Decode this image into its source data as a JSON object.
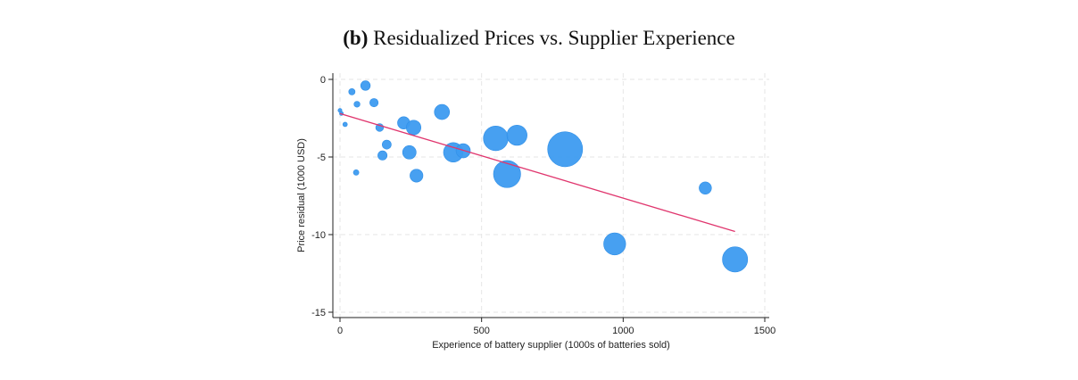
{
  "title": {
    "prefix": "(b)",
    "text": "Residualized Prices vs. Supplier Experience"
  },
  "chart_data": {
    "type": "scatter",
    "title": "(b) Residualized Prices vs. Supplier Experience",
    "xlabel": "Experience of battery supplier (1000s of batteries sold)",
    "ylabel": "Price residual (1000 USD)",
    "xlim": [
      0,
      1500
    ],
    "ylim": [
      -15,
      0
    ],
    "xticks": [
      0,
      500,
      1000,
      1500
    ],
    "yticks": [
      0,
      -5,
      -10,
      -15
    ],
    "grid": true,
    "point_color": "#3d9bf0",
    "fit_color": "#e0366e",
    "points": [
      {
        "x": 0,
        "y": -2.0,
        "weight": 0.3
      },
      {
        "x": 5,
        "y": -2.2,
        "weight": 0.3
      },
      {
        "x": 18,
        "y": -2.9,
        "weight": 0.4
      },
      {
        "x": 42,
        "y": -0.8,
        "weight": 0.8
      },
      {
        "x": 60,
        "y": -1.6,
        "weight": 0.7
      },
      {
        "x": 57,
        "y": -6.0,
        "weight": 0.6
      },
      {
        "x": 90,
        "y": -0.4,
        "weight": 1.8
      },
      {
        "x": 120,
        "y": -1.5,
        "weight": 1.4
      },
      {
        "x": 140,
        "y": -3.1,
        "weight": 1.2
      },
      {
        "x": 150,
        "y": -4.9,
        "weight": 1.7
      },
      {
        "x": 165,
        "y": -4.2,
        "weight": 1.6
      },
      {
        "x": 225,
        "y": -2.8,
        "weight": 3.0
      },
      {
        "x": 245,
        "y": -4.7,
        "weight": 3.6
      },
      {
        "x": 260,
        "y": -3.1,
        "weight": 4.2
      },
      {
        "x": 270,
        "y": -6.2,
        "weight": 3.3
      },
      {
        "x": 360,
        "y": -2.1,
        "weight": 4.5
      },
      {
        "x": 400,
        "y": -4.7,
        "weight": 7.5
      },
      {
        "x": 435,
        "y": -4.6,
        "weight": 4.0
      },
      {
        "x": 550,
        "y": -3.8,
        "weight": 12.0
      },
      {
        "x": 590,
        "y": -6.1,
        "weight": 14.5
      },
      {
        "x": 625,
        "y": -3.6,
        "weight": 8.0
      },
      {
        "x": 795,
        "y": -4.5,
        "weight": 24.0
      },
      {
        "x": 970,
        "y": -10.6,
        "weight": 9.5
      },
      {
        "x": 1290,
        "y": -7.0,
        "weight": 3.0
      },
      {
        "x": 1395,
        "y": -11.6,
        "weight": 12.5
      }
    ],
    "fit_line": {
      "x": [
        0,
        1395
      ],
      "y": [
        -2.2,
        -9.8
      ]
    }
  }
}
